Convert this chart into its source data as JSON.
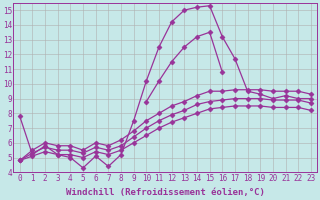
{
  "xlabel": "Windchill (Refroidissement éolien,°C)",
  "xlim": [
    -0.5,
    23.5
  ],
  "ylim": [
    4,
    15.5
  ],
  "xticks": [
    0,
    1,
    2,
    3,
    4,
    5,
    6,
    7,
    8,
    9,
    10,
    11,
    12,
    13,
    14,
    15,
    16,
    17,
    18,
    19,
    20,
    21,
    22,
    23
  ],
  "yticks": [
    4,
    5,
    6,
    7,
    8,
    9,
    10,
    11,
    12,
    13,
    14,
    15
  ],
  "bg_color": "#c6e8e8",
  "line_color": "#993399",
  "grid_color": "#b0b0b0",
  "line_width": 0.9,
  "marker": "D",
  "marker_size": 2.5,
  "curves": [
    [
      7.8,
      5.2,
      5.8,
      5.2,
      5.0,
      4.3,
      5.1,
      4.4,
      5.2,
      7.5,
      10.2,
      12.5,
      14.2,
      15.0,
      15.2,
      15.3,
      13.2,
      11.7,
      9.5,
      9.3,
      9.0,
      9.2,
      9.0,
      9.0
    ],
    [
      null,
      null,
      null,
      null,
      null,
      null,
      null,
      null,
      null,
      null,
      8.8,
      10.2,
      11.5,
      12.5,
      13.2,
      13.5,
      10.8,
      null,
      null,
      null,
      null,
      null,
      null,
      null
    ],
    [
      4.8,
      5.5,
      6.0,
      5.8,
      5.8,
      5.5,
      6.0,
      5.8,
      6.2,
      6.8,
      7.5,
      8.0,
      8.5,
      8.8,
      9.2,
      9.5,
      9.5,
      9.6,
      9.6,
      9.6,
      9.5,
      9.5,
      9.5,
      9.3
    ],
    [
      4.8,
      5.3,
      5.7,
      5.5,
      5.5,
      5.3,
      5.7,
      5.5,
      5.8,
      6.4,
      7.0,
      7.5,
      7.9,
      8.2,
      8.6,
      8.8,
      8.9,
      9.0,
      9.0,
      9.0,
      8.9,
      8.9,
      8.9,
      8.7
    ],
    [
      4.8,
      5.1,
      5.4,
      5.2,
      5.2,
      5.0,
      5.4,
      5.2,
      5.5,
      6.0,
      6.5,
      7.0,
      7.4,
      7.7,
      8.0,
      8.3,
      8.4,
      8.5,
      8.5,
      8.5,
      8.4,
      8.4,
      8.4,
      8.2
    ]
  ],
  "font_family": "monospace",
  "tick_fontsize": 5.5,
  "label_fontsize": 6.5
}
